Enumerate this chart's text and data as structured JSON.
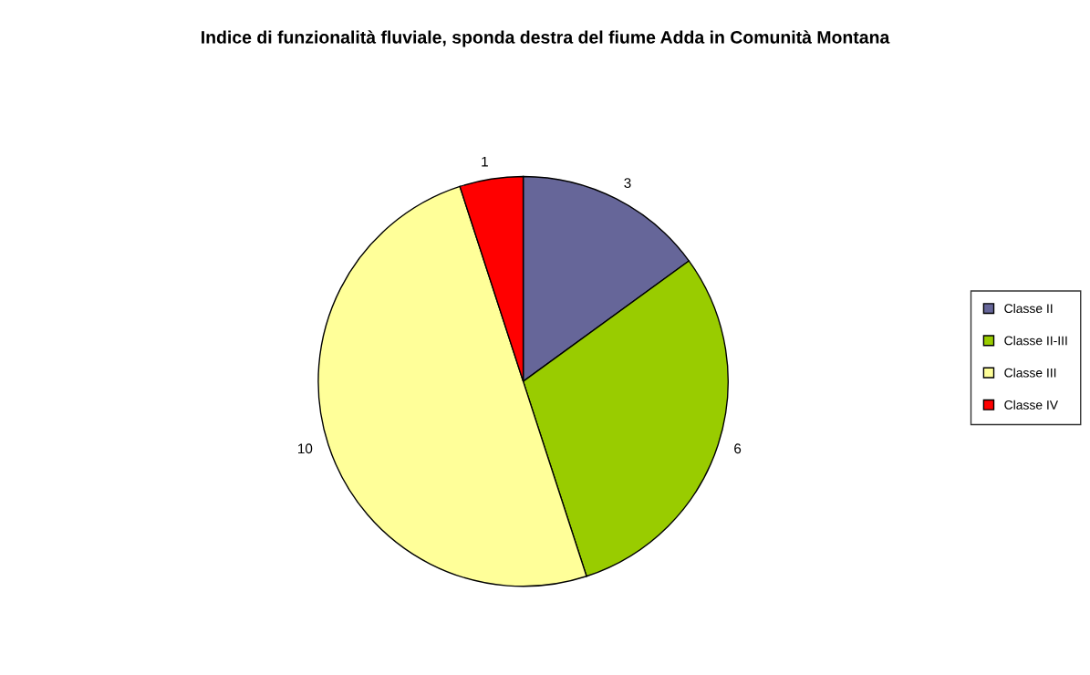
{
  "chart_data": {
    "type": "pie",
    "title": "Indice di funzionalità fluviale, sponda destra del fiume Adda in Comunità Montana",
    "categories": [
      "Classe II",
      "Classe II-III",
      "Classe III",
      "Classe IV"
    ],
    "values": [
      3,
      6,
      10,
      1
    ],
    "colors": [
      "#666699",
      "#99cc00",
      "#ffff99",
      "#ff0000"
    ],
    "data_labels": true,
    "legend": "right"
  }
}
